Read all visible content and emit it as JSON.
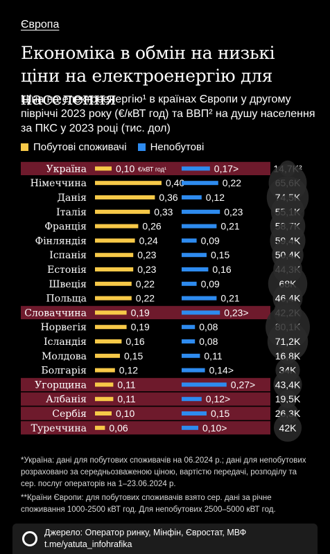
{
  "tag": "Європа",
  "title": "Економіка в обмін на низькі ціни на електроенергію для населення",
  "subtitle": "Ціна на електроенергію¹ в країнах Європи у другому півріччі 2023 року (€/кВТ год) та ВВП² на душу населення за ПКС у 2023 році (тис. дол)",
  "legend": [
    {
      "label": "Побутові споживачі",
      "color": "#f7c948"
    },
    {
      "label": "Непобутові",
      "color": "#2e8bef"
    }
  ],
  "unit_label": "€/кВТ год¹",
  "chart_data": {
    "type": "bar",
    "categories": [
      "Україна",
      "Німеччина",
      "Данія",
      "Італія",
      "Франція",
      "Фінляндія",
      "Іспанія",
      "Естонія",
      "Швеція",
      "Польща",
      "Словаччина",
      "Норвегія",
      "Ісландія",
      "Молдова",
      "Болгарія",
      "Угорщина",
      "Албанія",
      "Сербія",
      "Туреччина"
    ],
    "series": [
      {
        "name": "Побутові споживачі",
        "color": "#f7c948",
        "values": [
          0.1,
          0.4,
          0.36,
          0.33,
          0.26,
          0.24,
          0.23,
          0.23,
          0.22,
          0.22,
          0.19,
          0.19,
          0.16,
          0.15,
          0.12,
          0.11,
          0.11,
          0.1,
          0.06
        ],
        "labels": [
          "0,10",
          "0,40",
          "0,36",
          "0,33",
          "0,26",
          "0,24",
          "0,23",
          "0,23",
          "0,22",
          "0,22",
          "0,19",
          "0,19",
          "0,16",
          "0,15",
          "0,12",
          "0,11",
          "0,11",
          "0,10",
          "0,06"
        ]
      },
      {
        "name": "Непобутові",
        "color": "#2e8bef",
        "values": [
          0.17,
          0.22,
          0.12,
          0.23,
          0.21,
          0.09,
          0.15,
          0.16,
          0.09,
          0.21,
          0.23,
          0.08,
          0.08,
          0.11,
          0.14,
          0.27,
          0.12,
          0.15,
          0.1
        ],
        "labels": [
          "0,17>",
          "0,22",
          "0,12",
          "0,23",
          "0,21",
          "0,09",
          "0,15",
          "0,16",
          "0,09",
          "0,21",
          "0,23>",
          "0,08",
          "0,08",
          "0,11",
          "0,14>",
          "0,27>",
          "0,12>",
          "0,15",
          "0,10>"
        ]
      }
    ],
    "gdp": {
      "values": [
        14.7,
        65.6,
        74.5,
        55.1,
        58.7,
        59.4,
        50.4,
        44.3,
        68,
        46.4,
        42.2,
        80.1,
        71.2,
        16.8,
        34,
        43.4,
        19.5,
        26.3,
        42
      ],
      "labels": [
        "14,7K²",
        "65,6K",
        "74,5K",
        "55,1K",
        "58,7K",
        "59,4K",
        "50,4K",
        "44,3K",
        "68K",
        "46,4K",
        "42,2K",
        "80,1K",
        "71,2K",
        "16,8K",
        "34K",
        "43,4K",
        "19,5K",
        "26,3K",
        "42K"
      ]
    },
    "highlighted": [
      "Україна",
      "Словаччина",
      "Угорщина",
      "Албанія",
      "Сербія",
      "Туреччина"
    ],
    "highlight_color": "#6e1a2c"
  },
  "notes": [
    "*Україна: дані для побутових споживачів на 06.2024 р.; дані для непобутових розраховано за середньозваженою ціною, вартістю передачі, розподілу та сер. послуг операторів на 1–23.06.2024 р.",
    "**Країни Європи: для побутових споживачів взято сер. дані за річне споживання 1000-2500 кВТ год. Для непобутових 2500–5000 кВТ год."
  ],
  "footer": {
    "source": "Джерело: Оператор ринку, Мінфін, Євростат, МВФ",
    "link": "t.me/yatuta_infohrafika"
  }
}
